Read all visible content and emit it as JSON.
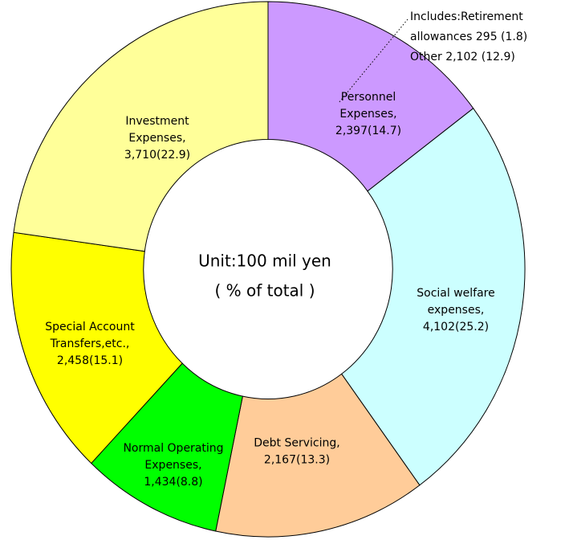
{
  "chart_data": {
    "type": "donut",
    "categories": [
      [
        "Personnel",
        "Expenses,"
      ],
      [
        "Social welfare",
        "expenses,"
      ],
      [
        "Debt Servicing,"
      ],
      [
        "Normal Operating",
        "Expenses,"
      ],
      [
        "Special Account",
        "Transfers,etc.,"
      ],
      [
        "Investment",
        "Expenses,"
      ]
    ],
    "values": [
      2397,
      4102,
      2167,
      1434,
      2458,
      3710
    ],
    "value_labels": [
      "2,397(14.7)",
      "4,102(25.2)",
      "2,167(13.3)",
      "1,434(8.8)",
      "2,458(15.1)",
      "3,710(22.9)"
    ],
    "colors": [
      "#cc99ff",
      "#ccffff",
      "#ffcc99",
      "#00ff00",
      "#ffff00",
      "#ffff99"
    ],
    "center_text": [
      "Unit:100 mil yen",
      "( % of total )"
    ],
    "annotation": [
      "Includes:Retirement",
      "allowances 295 (1.8)",
      "Other 2,102 (12.9)"
    ]
  }
}
